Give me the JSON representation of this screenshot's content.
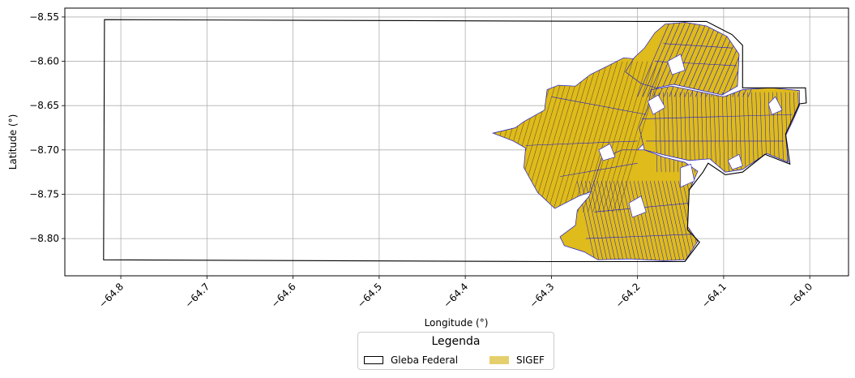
{
  "axes": {
    "xlabel": "Longitude (°)",
    "ylabel": "Latitude (°)",
    "xlim": [
      -64.865,
      -63.955
    ],
    "ylim": [
      -8.842,
      -8.54
    ],
    "x_ticks": [
      -64.8,
      -64.7,
      -64.6,
      -64.5,
      -64.4,
      -64.3,
      -64.2,
      -64.1,
      -64.0
    ],
    "x_tick_labels": [
      "−64.8",
      "−64.7",
      "−64.6",
      "−64.5",
      "−64.4",
      "−64.3",
      "−64.2",
      "−64.1",
      "−64.0"
    ],
    "y_ticks": [
      -8.55,
      -8.6,
      -8.65,
      -8.7,
      -8.75,
      -8.8
    ],
    "y_tick_labels": [
      "−8.55",
      "−8.60",
      "−8.65",
      "−8.70",
      "−8.75",
      "−8.80"
    ],
    "grid": true
  },
  "legend": {
    "title": "Legenda",
    "placement": "bottom-center, below plot",
    "items": [
      {
        "label": "Gleba Federal",
        "kind": "outline",
        "color": "#000000"
      },
      {
        "label": "SIGEF",
        "kind": "fill",
        "color": "#e5cf6d"
      }
    ]
  },
  "layers": {
    "gleba_federal": {
      "name": "Gleba Federal",
      "edge_color": "#000000",
      "face_color": "none",
      "outline_lonlat": [
        [
          -64.819,
          -8.553
        ],
        [
          -64.2,
          -8.555
        ],
        [
          -64.12,
          -8.555
        ],
        [
          -64.09,
          -8.57
        ],
        [
          -64.078,
          -8.582
        ],
        [
          -64.078,
          -8.63
        ],
        [
          -64.045,
          -8.63
        ],
        [
          -64.03,
          -8.63
        ],
        [
          -64.005,
          -8.63
        ],
        [
          -64.004,
          -8.647
        ],
        [
          -64.012,
          -8.648
        ],
        [
          -64.02,
          -8.665
        ],
        [
          -64.028,
          -8.682
        ],
        [
          -64.023,
          -8.716
        ],
        [
          -64.052,
          -8.705
        ],
        [
          -64.078,
          -8.725
        ],
        [
          -64.098,
          -8.728
        ],
        [
          -64.118,
          -8.715
        ],
        [
          -64.124,
          -8.725
        ],
        [
          -64.14,
          -8.745
        ],
        [
          -64.142,
          -8.79
        ],
        [
          -64.128,
          -8.804
        ],
        [
          -64.145,
          -8.826
        ],
        [
          -64.3,
          -8.826
        ],
        [
          -64.82,
          -8.824
        ]
      ]
    },
    "sigef": {
      "name": "SIGEF",
      "face_color": "#dfbb1b",
      "edge_color": "#1a1ad6",
      "hatch_color": "#6e5a2a"
    }
  }
}
